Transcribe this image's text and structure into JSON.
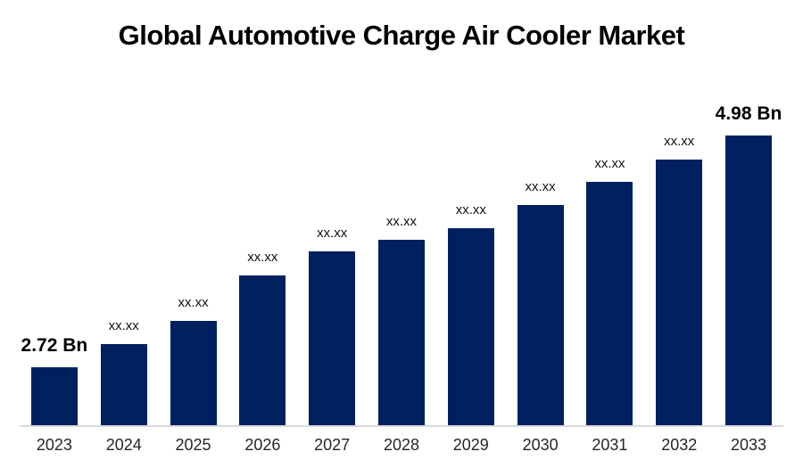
{
  "title": "Global Automotive Charge Air Cooler Market",
  "chart_data": {
    "type": "bar",
    "title": "Global Automotive Charge Air Cooler Market",
    "xlabel": "",
    "ylabel": "",
    "categories": [
      "2023",
      "2024",
      "2025",
      "2026",
      "2027",
      "2028",
      "2029",
      "2030",
      "2031",
      "2032",
      "2033"
    ],
    "values_bn_estimated": [
      2.72,
      2.95,
      3.17,
      3.62,
      3.85,
      3.96,
      4.08,
      4.3,
      4.53,
      4.75,
      4.98
    ],
    "bar_labels": [
      "2.72 Bn",
      "xx.xx",
      "xx.xx",
      "xx.xx",
      "xx.xx",
      "xx.xx",
      "xx.xx",
      "xx.xx",
      "xx.xx",
      "xx.xx",
      "4.98 Bn"
    ],
    "label_emphasis": [
      true,
      false,
      false,
      false,
      false,
      false,
      false,
      false,
      false,
      false,
      true
    ],
    "first_value_label": "2.72 Bn",
    "last_value_label": "4.98 Bn",
    "masked_value_label": "xx.xx",
    "unit": "Bn",
    "bar_color": "#002060",
    "axis_line_color": "#d9d9d9",
    "ylim": [
      2.155,
      5.0
    ],
    "grid": false,
    "legend": false,
    "y_axis_visible": false
  }
}
